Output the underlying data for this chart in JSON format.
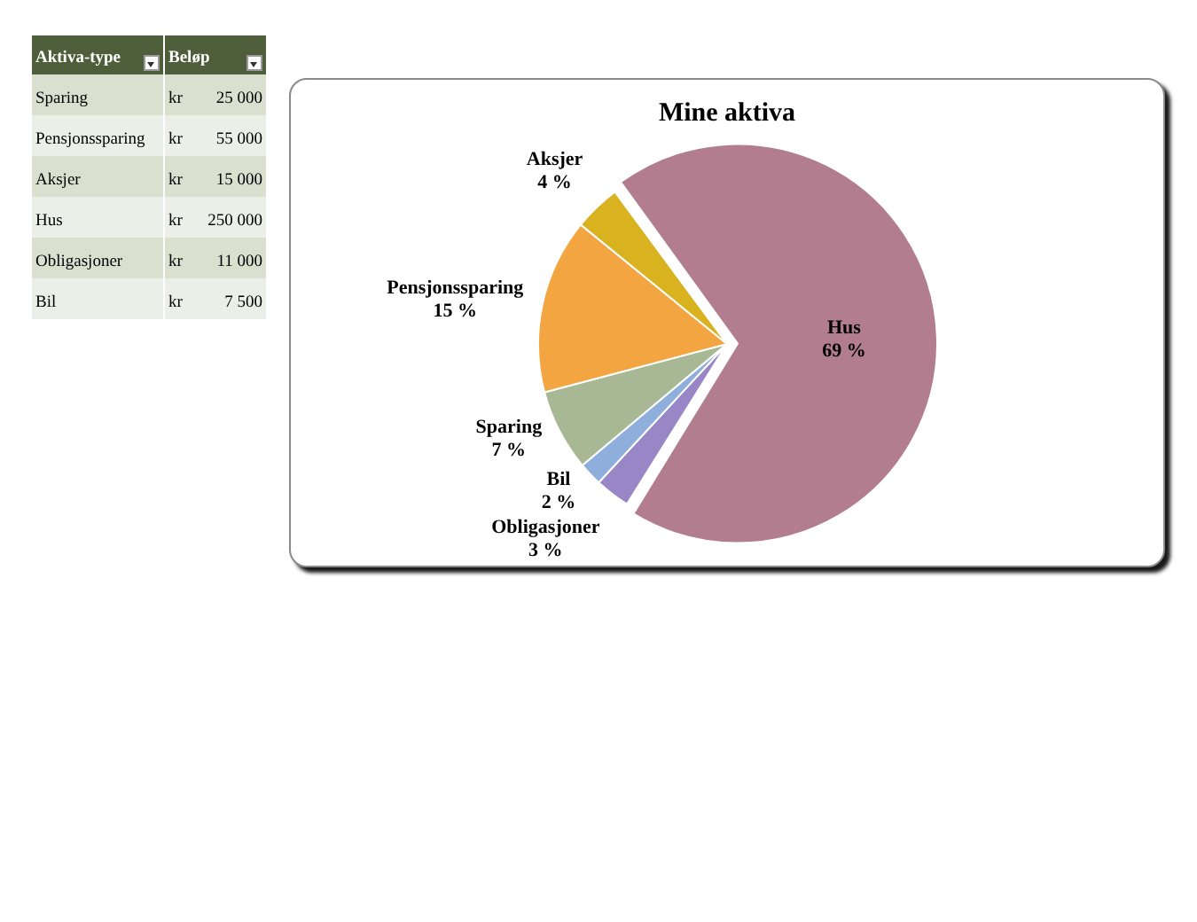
{
  "chart_data": [
    {
      "type": "other",
      "categories": [
        "Sparing",
        "Pensjonssparing",
        "Aksjer",
        "Hus",
        "Obligasjoner",
        "Bil"
      ],
      "values": [
        25000,
        55000,
        15000,
        250000,
        11000,
        7500
      ],
      "data_labels": true,
      "annotations": [
        "Aktiva-type",
        "Beløp",
        "kr"
      ]
    },
    {
      "type": "pie",
      "title": "Mine aktiva",
      "categories": [
        "Sparing",
        "Pensjonssparing",
        "Aksjer",
        "Hus",
        "Obligasjoner",
        "Bil"
      ],
      "values": [
        7,
        15,
        4,
        69,
        3,
        2
      ],
      "colors": [
        "#a9b894",
        "#f2a541",
        "#d8b21f",
        "#b27d8f",
        "#9886c6",
        "#8eaedb"
      ],
      "value_labels": [
        "7 %",
        "15 %",
        "4 %",
        "69 %",
        "3 %",
        "2 %"
      ]
    }
  ]
}
